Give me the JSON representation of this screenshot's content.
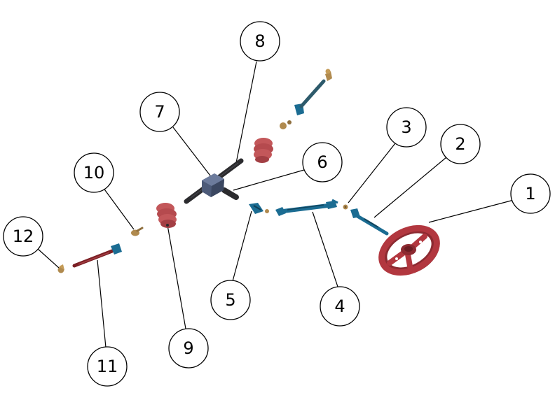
{
  "colors": {
    "wheel": "#b2373f",
    "bellows": "#c3575a",
    "blue_part": "#1b6c92",
    "dark_shaft": "#2b2b2e",
    "rack_housing": "#4c5a78",
    "brass": "#b08a4e",
    "dark_red": "#7b1f24"
  },
  "callouts": [
    {
      "id": "1",
      "label": "1"
    },
    {
      "id": "2",
      "label": "2"
    },
    {
      "id": "3",
      "label": "3"
    },
    {
      "id": "4",
      "label": "4"
    },
    {
      "id": "5",
      "label": "5"
    },
    {
      "id": "6",
      "label": "6"
    },
    {
      "id": "7",
      "label": "7"
    },
    {
      "id": "8",
      "label": "8"
    },
    {
      "id": "9",
      "label": "9"
    },
    {
      "id": "10",
      "label": "10"
    },
    {
      "id": "11",
      "label": "11"
    },
    {
      "id": "12",
      "label": "12"
    }
  ]
}
